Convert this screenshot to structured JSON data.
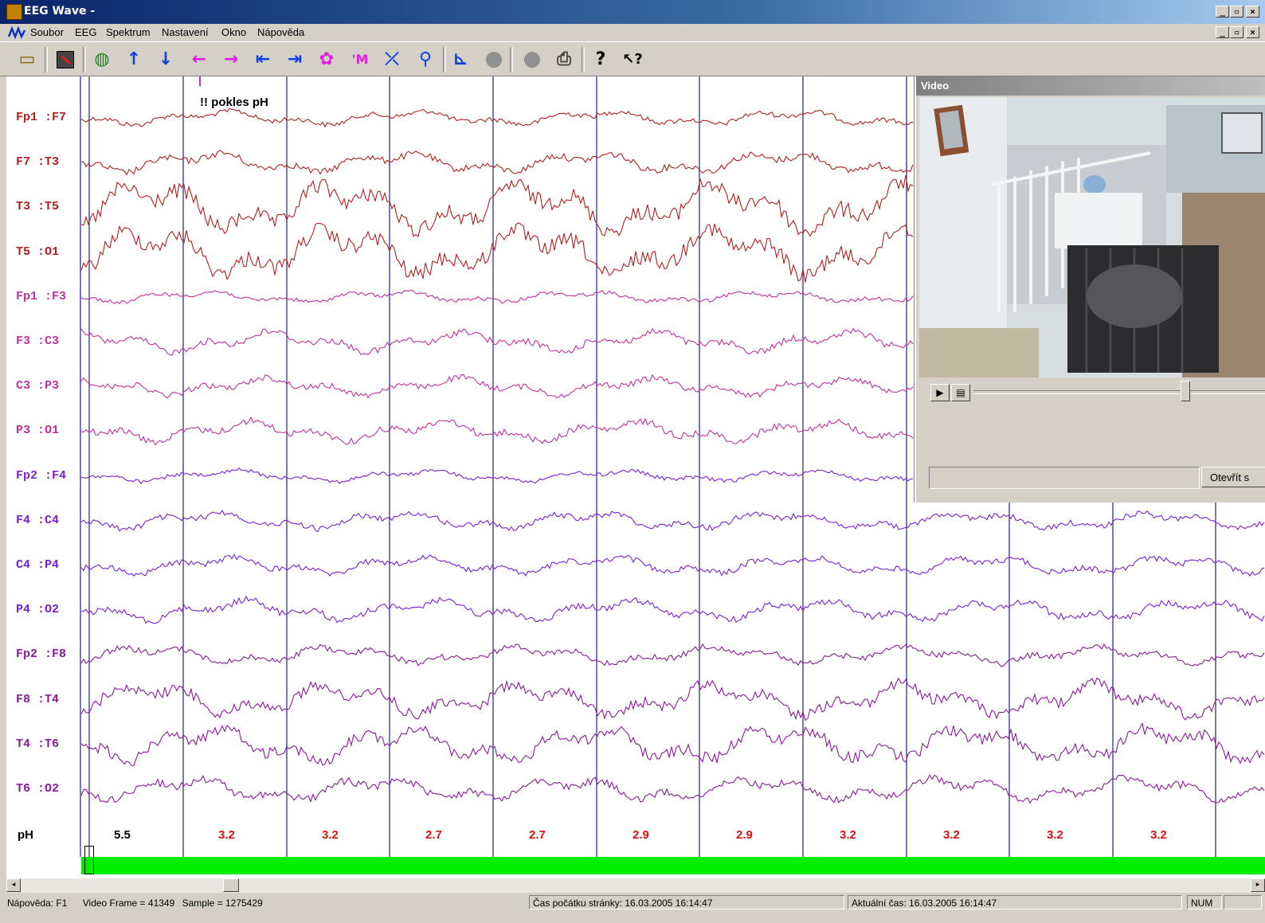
{
  "window": {
    "title": "EEG Wave -"
  },
  "menu": {
    "items": [
      "Soubor",
      "EEG",
      "Spektrum",
      "Nastavení",
      "Okno",
      "Nápověda"
    ]
  },
  "toolbar": {
    "icons": [
      "open-folder",
      "marker",
      "montage",
      "up",
      "down",
      "left",
      "right",
      "start",
      "end",
      "filter",
      "mark",
      "measure",
      "zoom",
      "spectrum",
      "record-1",
      "record-2",
      "print",
      "help",
      "context-help"
    ]
  },
  "eeg": {
    "annotation": "!! pokles pH",
    "channels": [
      "Fp1 :F7",
      "F7 :T3",
      "T3 :T5",
      "T5 :O1",
      "Fp1 :F3",
      "F3 :C3",
      "C3 :P3",
      "P3 :O1",
      "Fp2 :F4",
      "F4 :C4",
      "C4 :P4",
      "P4 :O2",
      "Fp2 :F8",
      "F8 :T4",
      "T4 :T6",
      "T6 :O2"
    ],
    "channel_colors": [
      "#b02020",
      "#b02020",
      "#b02020",
      "#b02020",
      "#c030a0",
      "#c030a0",
      "#c030a0",
      "#c030a0",
      "#7a20d0",
      "#7a20d0",
      "#7a20d0",
      "#7a20d0",
      "#8a1a9a",
      "#8a1a9a",
      "#8a1a9a",
      "#8a1a9a"
    ],
    "ph_label": "pH",
    "ph_values": [
      "5.5",
      "3.2",
      "3.2",
      "2.7",
      "2.7",
      "2.9",
      "2.9",
      "3.2",
      "3.2",
      "3.2",
      "3.2"
    ],
    "ph_colors": [
      "#000000",
      "#e01010",
      "#e01010",
      "#e01010",
      "#e01010",
      "#e01010",
      "#e01010",
      "#e01010",
      "#e01010",
      "#e01010",
      "#e01010"
    ],
    "bar_color": "#00ee00"
  },
  "video": {
    "title": "Video",
    "open_button": "Otevřít s"
  },
  "status": {
    "help": "Nápověda: F1",
    "frame": "Video Frame = 41349",
    "sample": "Sample = 1275429",
    "page_start": "Čas počátku stránky: 16.03.2005 16:14:47",
    "current_time": "Aktuální čas: 16.03.2005 16:14:47",
    "num": "NUM"
  }
}
